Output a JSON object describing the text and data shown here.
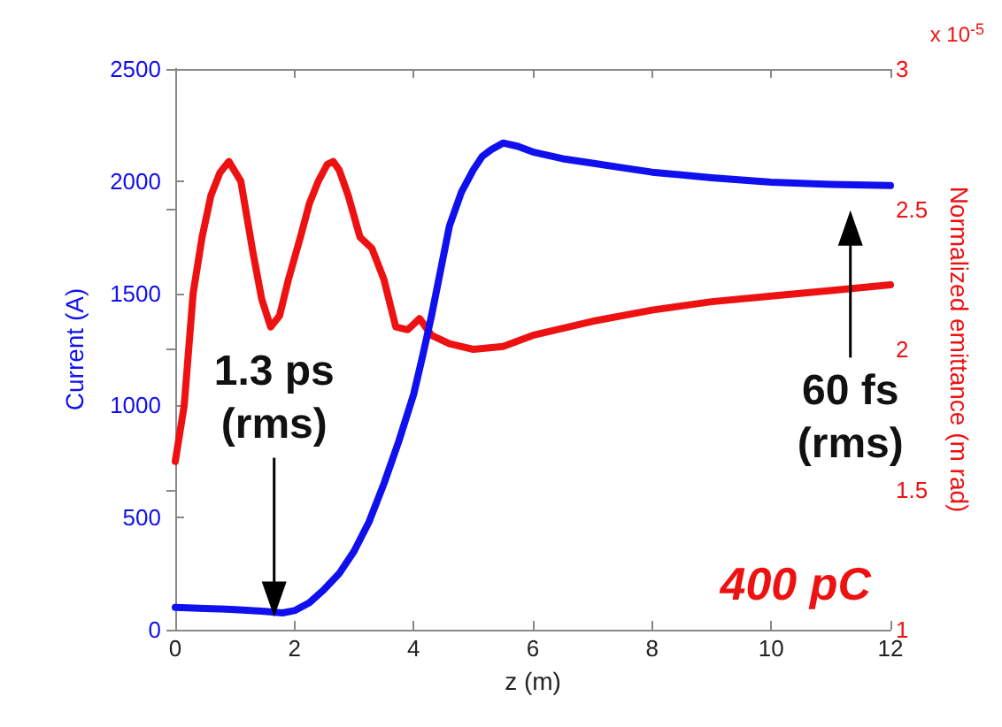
{
  "chart_data": {
    "type": "line",
    "xlabel": "z (m)",
    "ylabel": "Current (A)",
    "y2label": "Normalized emittance (m rad)",
    "xlim": [
      0,
      12
    ],
    "xticks": [
      0,
      2,
      4,
      6,
      8,
      10,
      12
    ],
    "ylim": [
      0,
      2500
    ],
    "yticks": [
      0,
      500,
      1000,
      1500,
      2000,
      2500
    ],
    "y2lim": [
      1,
      3
    ],
    "y2ticks": [
      1,
      1.5,
      2,
      2.5,
      3
    ],
    "grid": false,
    "marker": "none",
    "line_style": "solid",
    "series": [
      {
        "color": "#1010ee",
        "axis": "y",
        "x": [
          0,
          0.5,
          1,
          1.5,
          1.8,
          2,
          2.25,
          2.5,
          2.75,
          3,
          3.25,
          3.5,
          3.75,
          4,
          4.15,
          4.3,
          4.45,
          4.6,
          4.8,
          5,
          5.15,
          5.3,
          5.5,
          5.75,
          6,
          6.5,
          7,
          7.5,
          8,
          9,
          10,
          11,
          12
        ],
        "values": [
          100,
          95,
          90,
          82,
          75,
          85,
          120,
          180,
          250,
          350,
          480,
          650,
          840,
          1050,
          1220,
          1400,
          1600,
          1800,
          1950,
          2050,
          2110,
          2140,
          2170,
          2155,
          2130,
          2100,
          2080,
          2060,
          2040,
          2015,
          1995,
          1985,
          1980
        ]
      },
      {
        "color": "#ee1111",
        "axis": "y2",
        "x": [
          0,
          0.15,
          0.3,
          0.45,
          0.6,
          0.75,
          0.9,
          1.1,
          1.3,
          1.45,
          1.6,
          1.75,
          1.9,
          2.1,
          2.25,
          2.4,
          2.55,
          2.65,
          2.75,
          2.9,
          3.1,
          3.3,
          3.5,
          3.7,
          3.9,
          4.1,
          4.3,
          4.6,
          5,
          5.5,
          6,
          7,
          8,
          9,
          10,
          11,
          12
        ],
        "values": [
          1.6,
          1.8,
          2.2,
          2.4,
          2.55,
          2.63,
          2.67,
          2.6,
          2.35,
          2.18,
          2.08,
          2.12,
          2.25,
          2.4,
          2.52,
          2.6,
          2.66,
          2.67,
          2.64,
          2.55,
          2.4,
          2.36,
          2.25,
          2.08,
          2.07,
          2.11,
          2.05,
          2.02,
          2.0,
          2.01,
          2.05,
          2.1,
          2.14,
          2.17,
          2.19,
          2.21,
          2.23
        ]
      }
    ],
    "annotations": [
      "1.3 ps\n(rms)",
      "60 fs\n(rms)",
      "400 pC",
      "x 10$^{-5}$"
    ]
  }
}
